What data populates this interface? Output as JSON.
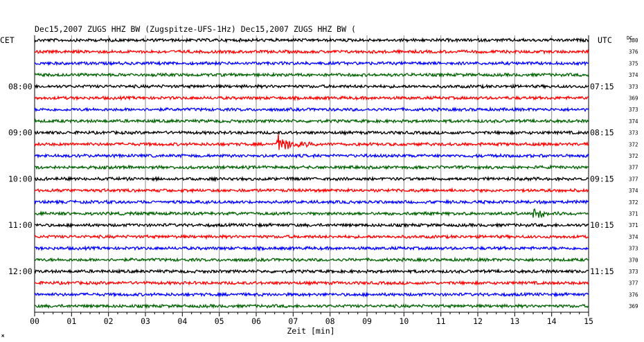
{
  "header": {
    "title": "Dec15,2007   ZUGS HHZ BW (Zugspitze-UFS-1Hz) Dec15,2007   ZUGS HHZ BW ("
  },
  "left_axis": {
    "label": "CET"
  },
  "right_axis": {
    "label": "UTC",
    "dc_label": "DC"
  },
  "chart_data": {
    "type": "line",
    "title": "Dec15,2007   ZUGS HHZ BW (Zugspitze-UFS-1Hz) Dec15,2007   ZUGS HHZ BW (",
    "xlabel": "Zeit [min]",
    "xlim": [
      0,
      15
    ],
    "x_ticks": [
      "00",
      "01",
      "02",
      "03",
      "04",
      "05",
      "06",
      "07",
      "08",
      "09",
      "10",
      "11",
      "12",
      "13",
      "14",
      "15"
    ],
    "grid": "vertical",
    "trace_count": 24,
    "trace_colors": [
      "#000000",
      "#ff0000",
      "#0000ff",
      "#006400"
    ],
    "left_hour_labels": [
      {
        "trace": 4,
        "label": "08:00"
      },
      {
        "trace": 8,
        "label": "09:00"
      },
      {
        "trace": 12,
        "label": "10:00"
      },
      {
        "trace": 16,
        "label": "11:00"
      },
      {
        "trace": 20,
        "label": "12:00"
      }
    ],
    "right_hour_labels": [
      {
        "trace": 4,
        "label": "07:15"
      },
      {
        "trace": 8,
        "label": "08:15"
      },
      {
        "trace": 12,
        "label": "09:15"
      },
      {
        "trace": 16,
        "label": "10:15"
      },
      {
        "trace": 20,
        "label": "11:15"
      }
    ],
    "dc_values": [
      "380",
      "376",
      "375",
      "374",
      "373",
      "369",
      "373",
      "374",
      "373",
      "372",
      "372",
      "377",
      "377",
      "374",
      "372",
      "371",
      "371",
      "374",
      "373",
      "370",
      "373",
      "377",
      "376",
      "369"
    ],
    "events": [
      {
        "trace": 9,
        "start_min": 6.55,
        "end_min": 8.9,
        "peak_amplitude": 14
      },
      {
        "trace": 15,
        "start_min": 13.45,
        "end_min": 15.0,
        "peak_amplitude": 9
      }
    ]
  },
  "footer": {
    "corner_mark": "ж"
  }
}
